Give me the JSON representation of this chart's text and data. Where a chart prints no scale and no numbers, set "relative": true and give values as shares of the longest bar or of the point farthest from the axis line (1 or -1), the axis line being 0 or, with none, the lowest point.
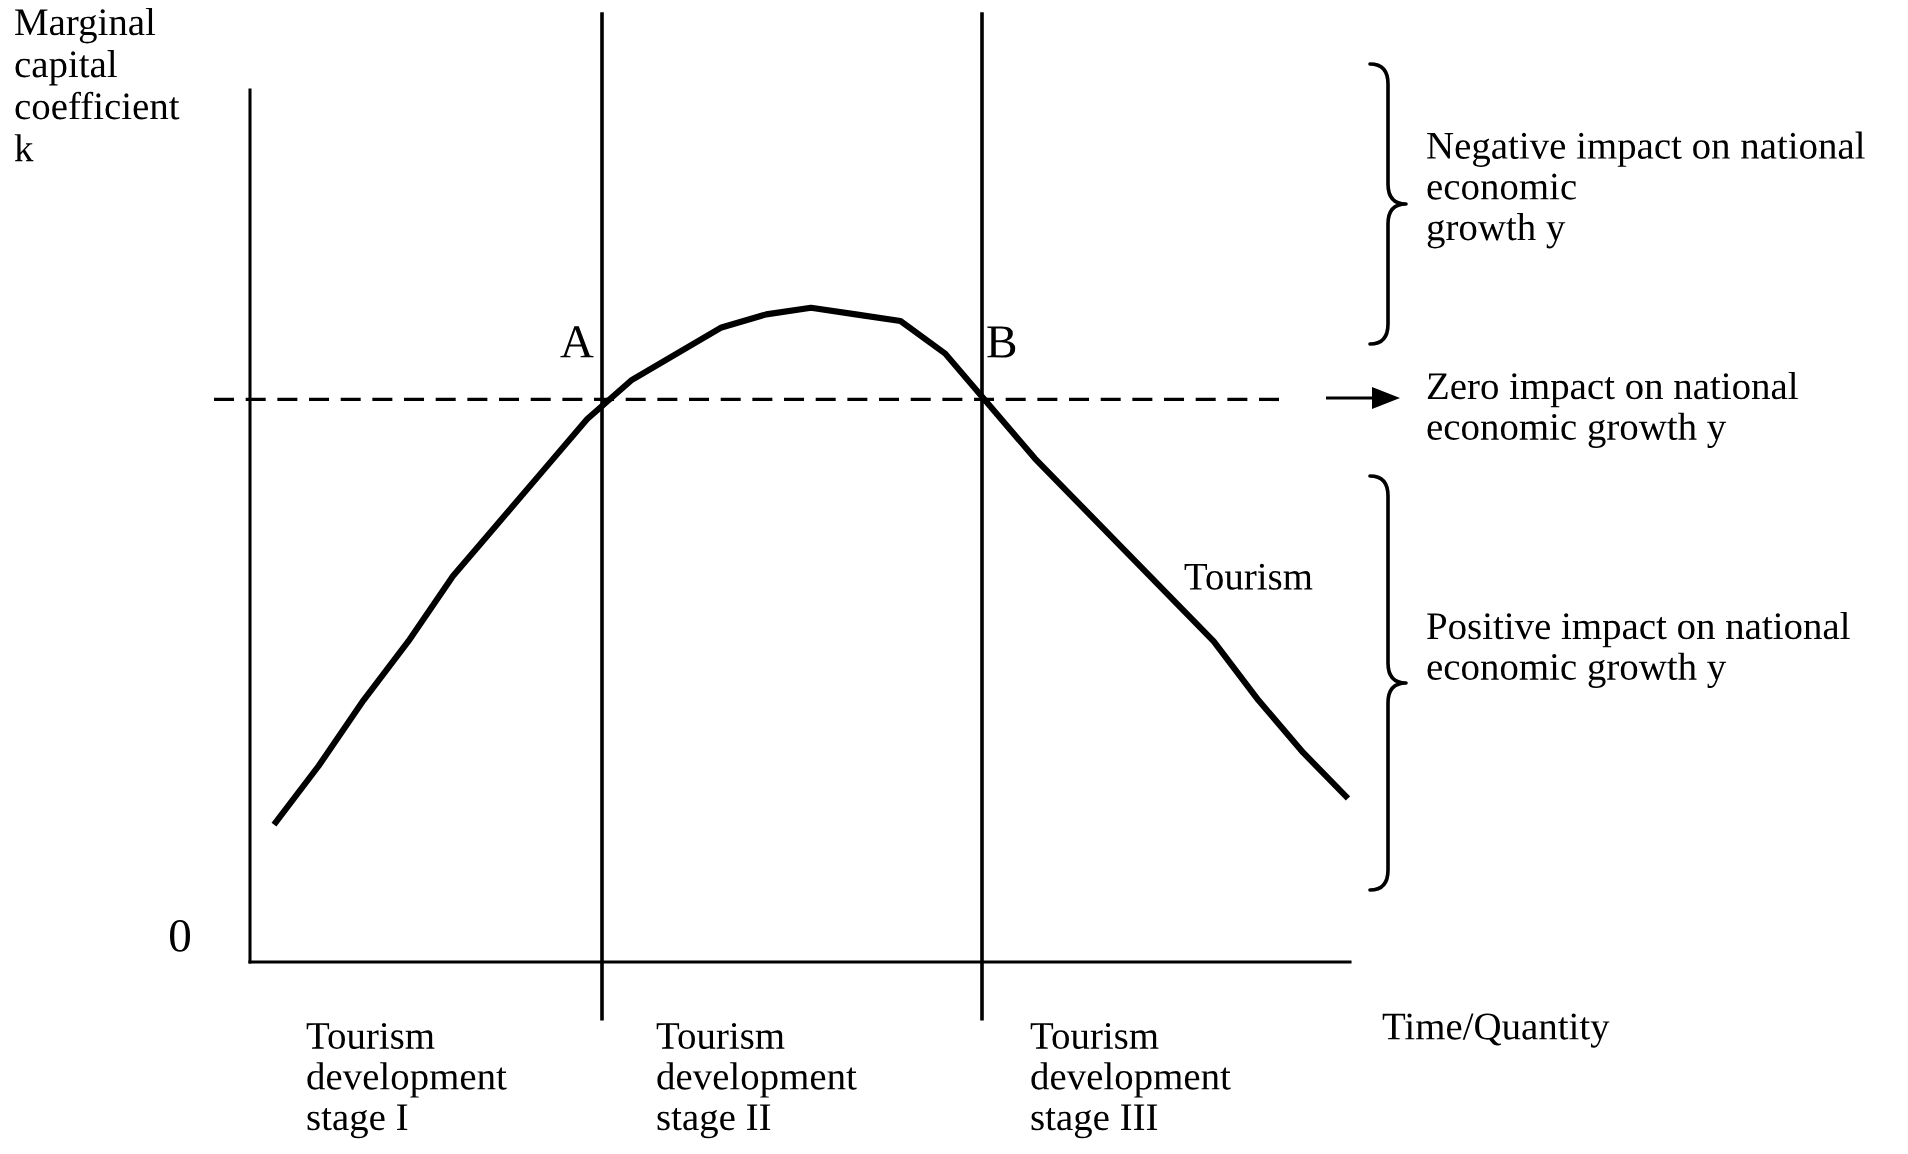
{
  "chart_data": {
    "type": "line",
    "relative": true,
    "ylabel": "Marginal\ncapital\ncoefficient\nk",
    "xlabel": "Time/Quantity",
    "categories": [
      null,
      null,
      null,
      null,
      null,
      null,
      null,
      null,
      null,
      null,
      null,
      null,
      null,
      null,
      null,
      null,
      null,
      null,
      null,
      null,
      null,
      null,
      null,
      null,
      null
    ],
    "series": [
      {
        "name": "Tourism",
        "color": "#000000",
        "values": [
          0.21,
          0.3,
          0.4,
          0.49,
          0.59,
          0.67,
          0.75,
          0.83,
          0.89,
          0.93,
          0.97,
          0.99,
          1,
          0.99,
          0.98,
          0.93,
          0.85,
          0.77,
          0.7,
          0.63,
          0.56,
          0.49,
          0.4,
          0.32,
          0.25
        ]
      }
    ],
    "ref_lines": [
      {
        "axis": "y",
        "value": 0.86,
        "line_style": "dashed",
        "color": "#000000"
      }
    ],
    "annotations": [
      "0",
      "A",
      "B",
      "Tourism\ndevelopment\nstage I",
      "Tourism\ndevelopment\nstage II",
      "Tourism\ndevelopment\nstage III",
      "Negative impact on national\neconomic\ngrowth y",
      "Zero impact on national\neconomic growth y",
      "Positive impact on national\neconomic growth y"
    ]
  }
}
